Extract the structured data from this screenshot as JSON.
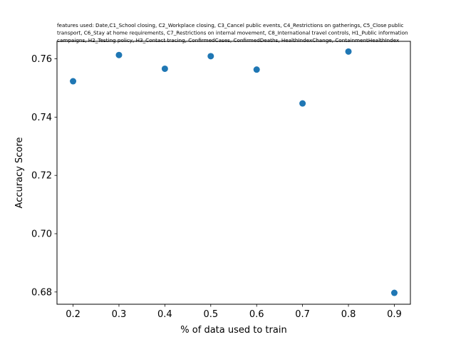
{
  "chart_data": {
    "type": "scatter",
    "title_lines": [
      "features used: Date,C1_School closing, C2_Workplace closing, C3_Cancel public events, C4_Restrictions on gatherings, C5_Close public",
      "transport, C6_Stay at home requirements, C7_Restrictions on internal movement, C8_International travel controls, H1_Public information",
      "campaigns, H2_Testing policy, H3_Contact tracing, ConfirmedCases, ConfirmedDeaths, HealthIndexChange, ContainmentHealthIndex"
    ],
    "xlabel": "% of data used to train",
    "ylabel": "Accuracy Score",
    "x": [
      0.2,
      0.3,
      0.4,
      0.5,
      0.6,
      0.7,
      0.8,
      0.9
    ],
    "y": [
      0.7523,
      0.7613,
      0.7566,
      0.7609,
      0.7563,
      0.7447,
      0.7625,
      0.6797
    ],
    "xlim": [
      0.165,
      0.935
    ],
    "ylim": [
      0.6758,
      0.766
    ],
    "xticks": [
      0.2,
      0.3,
      0.4,
      0.5,
      0.6,
      0.7,
      0.8,
      0.9
    ],
    "xtick_labels": [
      "0.2",
      "0.3",
      "0.4",
      "0.5",
      "0.6",
      "0.7",
      "0.8",
      "0.9"
    ],
    "yticks": [
      0.68,
      0.7,
      0.72,
      0.74,
      0.76
    ],
    "ytick_labels": [
      "0.68",
      "0.70",
      "0.72",
      "0.74",
      "0.76"
    ],
    "grid": false,
    "marker_color": "#1f77b4"
  }
}
